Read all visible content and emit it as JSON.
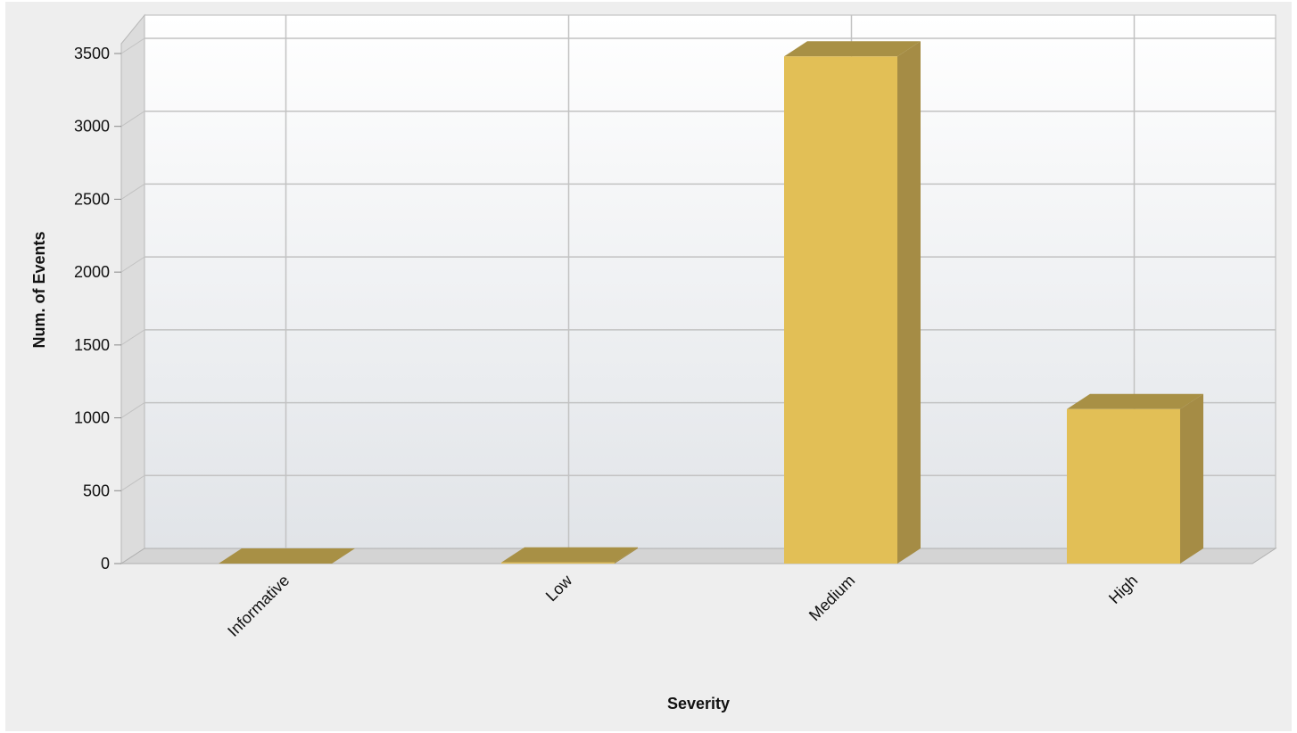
{
  "chart_data": {
    "type": "bar",
    "title": "",
    "xlabel": "Severity",
    "ylabel": "Num. of Events",
    "categories": [
      "Informative",
      "Low",
      "Medium",
      "High"
    ],
    "series": [
      {
        "values": [
          0,
          8,
          3480,
          1060
        ]
      }
    ],
    "ylim": [
      0,
      3500
    ],
    "yticks": [
      "0",
      "500",
      "1000",
      "1500",
      "2000",
      "2500",
      "3000",
      "3500"
    ],
    "grid": true,
    "legend": "none",
    "style": "3d",
    "colors": {
      "bar_front": "#e2bf56",
      "bar_side": "#a58c45",
      "bar_top": "#a89045",
      "plot_top": "#ffffff",
      "plot_bottom": "#e1e4e8",
      "grid": "#c2c2c2",
      "wall": "#dcdcdc",
      "floor": "#d4d4d4",
      "frame": "#eeeeee"
    }
  }
}
